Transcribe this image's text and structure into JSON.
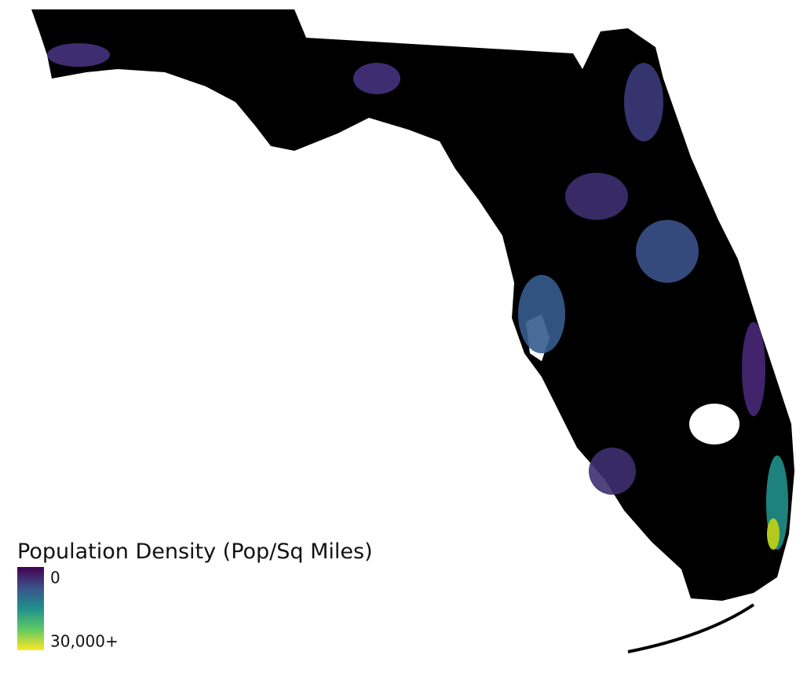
{
  "legend": {
    "title": "Population Density (Pop/Sq Miles)",
    "min_label": "0",
    "max_label": "30,000+"
  }
}
